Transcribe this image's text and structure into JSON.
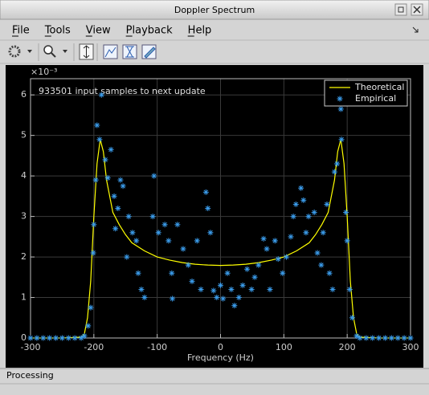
{
  "window": {
    "title": "Doppler Spectrum"
  },
  "menu": [
    "File",
    "Tools",
    "View",
    "Playback",
    "Help"
  ],
  "status": "Processing",
  "chart_data": {
    "type": "line",
    "annotation": "933501 input samples to next update",
    "xlabel": "Frequency (Hz)",
    "y_exponent": "×10⁻³",
    "xlim": [
      -300,
      300
    ],
    "xticks": [
      -300,
      -200,
      -100,
      0,
      100,
      200,
      300
    ],
    "ylim": [
      0,
      6.4
    ],
    "yticks": [
      0,
      1,
      2,
      3,
      4,
      5,
      6
    ],
    "grid": true,
    "legend": "upper right",
    "series": [
      {
        "name": "Theoretical",
        "color": "#ffff00",
        "style": "line",
        "x": [
          -300,
          -250,
          -220,
          -215,
          -210,
          -205,
          -200,
          -195,
          -190,
          -185,
          -180,
          -170,
          -160,
          -150,
          -140,
          -120,
          -100,
          -80,
          -60,
          -40,
          -20,
          0,
          20,
          40,
          60,
          80,
          100,
          120,
          140,
          150,
          160,
          170,
          180,
          185,
          190,
          195,
          200,
          205,
          210,
          215,
          220,
          250,
          300
        ],
        "values": [
          0,
          0,
          0.02,
          0.1,
          0.5,
          1.4,
          3.0,
          4.3,
          4.9,
          4.6,
          3.9,
          3.1,
          2.8,
          2.55,
          2.35,
          2.15,
          2.0,
          1.92,
          1.86,
          1.82,
          1.8,
          1.79,
          1.8,
          1.82,
          1.86,
          1.92,
          2.0,
          2.15,
          2.35,
          2.55,
          2.8,
          3.1,
          3.9,
          4.6,
          4.9,
          4.3,
          3.0,
          1.4,
          0.5,
          0.1,
          0.02,
          0,
          0
        ]
      },
      {
        "name": "Empirical",
        "color": "#3a9ae8",
        "style": "marker",
        "x": [
          -300,
          -290,
          -280,
          -270,
          -260,
          -250,
          -240,
          -230,
          -220,
          -215,
          -209,
          -205,
          -201,
          -200,
          -197,
          -195,
          -191,
          -188,
          -182,
          -178,
          -173,
          -168,
          -166,
          -162,
          -158,
          -154,
          -148,
          -145,
          -139,
          -133,
          -130,
          -125,
          -120,
          -107,
          -105,
          -98,
          -88,
          -82,
          -77,
          -76,
          -68,
          -59,
          -51,
          -45,
          -37,
          -31,
          -23,
          -20,
          -16,
          -11,
          -6,
          0,
          4,
          11,
          17,
          22,
          29,
          35,
          42,
          49,
          54,
          60,
          68,
          73,
          78,
          86,
          91,
          98,
          104,
          111,
          115,
          119,
          127,
          131,
          135,
          139,
          148,
          153,
          159,
          162,
          168,
          172,
          177,
          180,
          184,
          190,
          191,
          198,
          200,
          204,
          208,
          215,
          220,
          230,
          240,
          250,
          260,
          270,
          280,
          290,
          300
        ],
        "values": [
          0,
          0,
          0,
          0,
          0,
          0,
          0,
          0,
          0,
          0.05,
          0.3,
          0.75,
          2.1,
          2.8,
          3.9,
          5.25,
          4.9,
          6.0,
          4.4,
          3.95,
          4.65,
          3.5,
          2.7,
          3.2,
          3.9,
          3.75,
          2.0,
          3.0,
          2.6,
          2.4,
          1.6,
          1.2,
          1.0,
          3.0,
          4.0,
          2.6,
          2.8,
          2.4,
          1.6,
          0.97,
          2.8,
          2.2,
          1.8,
          1.4,
          2.4,
          1.2,
          3.6,
          3.2,
          2.6,
          1.17,
          1.0,
          1.3,
          0.97,
          1.6,
          1.2,
          0.8,
          1.0,
          1.3,
          1.7,
          1.2,
          1.5,
          1.8,
          2.45,
          2.2,
          1.2,
          2.4,
          1.95,
          1.6,
          2.0,
          2.5,
          3.0,
          3.3,
          3.7,
          3.4,
          2.6,
          3.0,
          3.1,
          2.1,
          1.8,
          2.6,
          3.3,
          1.6,
          1.2,
          4.1,
          4.3,
          5.65,
          4.9,
          3.1,
          2.4,
          1.2,
          0.5,
          0.05,
          0,
          0,
          0,
          0,
          0,
          0,
          0,
          0,
          0
        ]
      }
    ]
  }
}
